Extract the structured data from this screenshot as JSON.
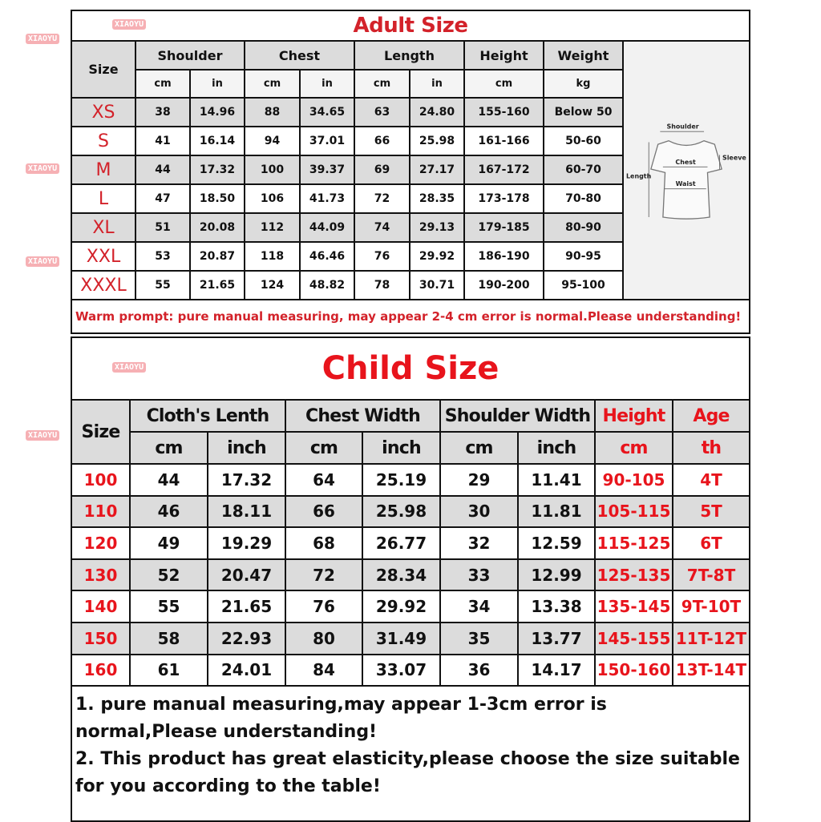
{
  "adult": {
    "title": "Adult Size",
    "size_label": "Size",
    "groups": [
      "Shoulder",
      "Chest",
      "Length",
      "Height",
      "Weight"
    ],
    "units": [
      "cm",
      "in",
      "cm",
      "in",
      "cm",
      "in",
      "cm",
      "kg"
    ],
    "rows": [
      {
        "size": "XS",
        "values": [
          "38",
          "14.96",
          "88",
          "34.65",
          "63",
          "24.80",
          "155-160",
          "Below 50"
        ]
      },
      {
        "size": "S",
        "values": [
          "41",
          "16.14",
          "94",
          "37.01",
          "66",
          "25.98",
          "161-166",
          "50-60"
        ]
      },
      {
        "size": "M",
        "values": [
          "44",
          "17.32",
          "100",
          "39.37",
          "69",
          "27.17",
          "167-172",
          "60-70"
        ]
      },
      {
        "size": "L",
        "values": [
          "47",
          "18.50",
          "106",
          "41.73",
          "72",
          "28.35",
          "173-178",
          "70-80"
        ]
      },
      {
        "size": "XL",
        "values": [
          "51",
          "20.08",
          "112",
          "44.09",
          "74",
          "29.13",
          "179-185",
          "80-90"
        ]
      },
      {
        "size": "XXL",
        "values": [
          "53",
          "20.87",
          "118",
          "46.46",
          "76",
          "29.92",
          "186-190",
          "90-95"
        ]
      },
      {
        "size": "XXXL",
        "values": [
          "55",
          "21.65",
          "124",
          "48.82",
          "78",
          "30.71",
          "190-200",
          "95-100"
        ]
      }
    ],
    "diagram_labels": {
      "shoulder": "Shoulder",
      "sleeves": "Sleeves",
      "chest": "Chest",
      "length": "Length",
      "waist": "Waist"
    },
    "prompt": "Warm prompt: pure manual measuring, may appear 2-4 cm error is normal.Please understanding!"
  },
  "child": {
    "title": "Child Size",
    "size_label": "Size",
    "groups": [
      "Cloth's Lenth",
      "Chest Width",
      "Shoulder Width",
      "Height",
      "Age"
    ],
    "units": [
      "cm",
      "inch",
      "cm",
      "inch",
      "cm",
      "inch",
      "cm",
      "th"
    ],
    "rows": [
      {
        "size": "100",
        "values": [
          "44",
          "17.32",
          "64",
          "25.19",
          "29",
          "11.41",
          "90-105",
          "4T"
        ]
      },
      {
        "size": "110",
        "values": [
          "46",
          "18.11",
          "66",
          "25.98",
          "30",
          "11.81",
          "105-115",
          "5T"
        ]
      },
      {
        "size": "120",
        "values": [
          "49",
          "19.29",
          "68",
          "26.77",
          "32",
          "12.59",
          "115-125",
          "6T"
        ]
      },
      {
        "size": "130",
        "values": [
          "52",
          "20.47",
          "72",
          "28.34",
          "33",
          "12.99",
          "125-135",
          "7T-8T"
        ]
      },
      {
        "size": "140",
        "values": [
          "55",
          "21.65",
          "76",
          "29.92",
          "34",
          "13.38",
          "135-145",
          "9T-10T"
        ]
      },
      {
        "size": "150",
        "values": [
          "58",
          "22.93",
          "80",
          "31.49",
          "35",
          "13.77",
          "145-155",
          "11T-12T"
        ]
      },
      {
        "size": "160",
        "values": [
          "61",
          "24.01",
          "84",
          "33.07",
          "36",
          "14.17",
          "150-160",
          "13T-14T"
        ]
      }
    ],
    "notes": [
      "1. pure manual measuring,may appear 1-3cm error is normal,Please understanding!",
      "2. This product has great elasticity,please choose the size suitable for you according to the table!"
    ]
  },
  "watermark": "XIAOYU",
  "colors": {
    "accent_red": "#e8141c",
    "row_gray": "#dcdcdc"
  }
}
